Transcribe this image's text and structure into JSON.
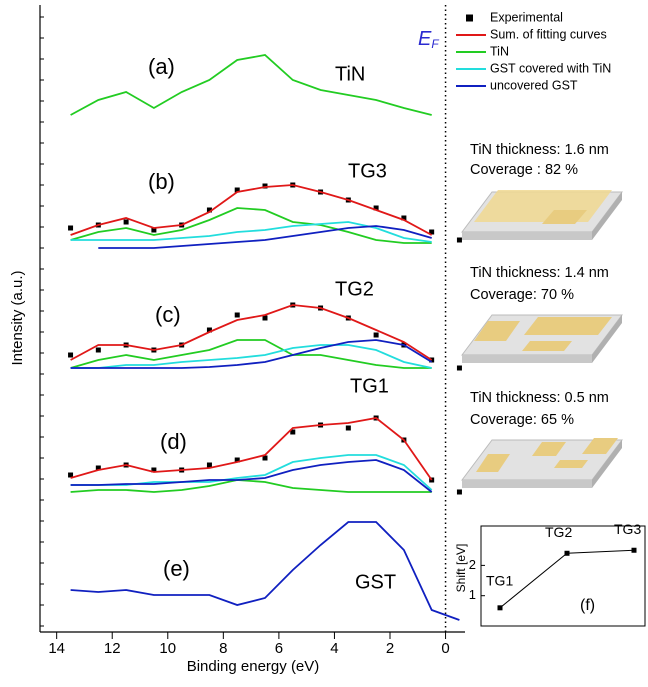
{
  "chart_data": [
    {
      "type": "line",
      "x_label": "Binding energy (eV)",
      "y_label": "Intensity (a.u.)",
      "fermi_label": {
        "text": "E",
        "sub": "F"
      },
      "fermi_level": 0,
      "xlim": [
        14.6,
        -0.7
      ],
      "xticks": [
        14,
        12,
        10,
        8,
        6,
        4,
        2,
        0
      ],
      "ylim": [
        0,
        627
      ],
      "x": [
        13.5,
        12.5,
        11.5,
        10.5,
        9.5,
        8.5,
        7.5,
        6.5,
        5.5,
        4.5,
        3.5,
        2.5,
        1.5,
        0.5,
        -0.5
      ],
      "series": [
        {
          "name": "Experimental",
          "color": "#000000",
          "marker": "square",
          "values": [
            404,
            407,
            410,
            402,
            407,
            422,
            442,
            446,
            447,
            440,
            432,
            424,
            414,
            400,
            392
          ]
        },
        {
          "name": "Sum. of fitting curves",
          "color": "#e01818",
          "values": [
            397,
            407,
            414,
            404,
            407,
            420,
            440,
            445,
            447,
            440,
            432,
            422,
            412,
            397,
            null
          ]
        },
        {
          "name": "TiN",
          "color": "#22cc22",
          "values": [
            392,
            400,
            404,
            397,
            402,
            412,
            424,
            422,
            410,
            407,
            400,
            392,
            389,
            389,
            null
          ]
        },
        {
          "name": "GST covered with TiN",
          "color": "#22dddd",
          "values": [
            392,
            392,
            392,
            392,
            394,
            396,
            400,
            402,
            406,
            408,
            410,
            404,
            394,
            390,
            null
          ]
        },
        {
          "name": "uncovered GST",
          "color": "#1020c0",
          "values": [
            null,
            384,
            384,
            384,
            386,
            388,
            390,
            392,
            396,
            400,
            404,
            406,
            402,
            394,
            null
          ]
        },
        {
          "name": "Experimental",
          "color": "#000000",
          "marker": "square",
          "values": [
            277,
            282,
            287,
            282,
            287,
            302,
            317,
            314,
            327,
            324,
            314,
            297,
            287,
            272,
            264
          ]
        },
        {
          "name": "Sum. of fitting curves",
          "color": "#e01818",
          "values": [
            272,
            287,
            287,
            282,
            287,
            300,
            312,
            317,
            327,
            324,
            314,
            302,
            290,
            272,
            null
          ]
        },
        {
          "name": "TiN",
          "color": "#22cc22",
          "values": [
            264,
            272,
            277,
            272,
            277,
            282,
            292,
            292,
            277,
            277,
            272,
            267,
            264,
            264,
            null
          ]
        },
        {
          "name": "GST covered with TiN",
          "color": "#22dddd",
          "values": [
            264,
            264,
            267,
            267,
            270,
            272,
            274,
            277,
            284,
            287,
            287,
            282,
            270,
            264,
            null
          ]
        },
        {
          "name": "uncovered GST",
          "color": "#1020c0",
          "values": [
            264,
            264,
            264,
            264,
            264,
            265,
            267,
            270,
            277,
            284,
            290,
            292,
            287,
            270,
            null
          ]
        },
        {
          "name": "Experimental",
          "color": "#000000",
          "marker": "square",
          "values": [
            157,
            164,
            167,
            162,
            162,
            167,
            172,
            174,
            200,
            207,
            204,
            214,
            192,
            152,
            140
          ]
        },
        {
          "name": "Sum. of fitting curves",
          "color": "#e01818",
          "values": [
            154,
            162,
            167,
            160,
            162,
            164,
            170,
            177,
            204,
            207,
            209,
            214,
            192,
            152,
            null
          ]
        },
        {
          "name": "TiN",
          "color": "#22cc22",
          "values": [
            140,
            142,
            142,
            140,
            142,
            146,
            152,
            150,
            144,
            142,
            140,
            140,
            140,
            140,
            null
          ]
        },
        {
          "name": "GST covered with TiN",
          "color": "#22dddd",
          "values": [
            147,
            147,
            147,
            150,
            150,
            150,
            154,
            157,
            170,
            174,
            177,
            177,
            167,
            142,
            null
          ]
        },
        {
          "name": "uncovered GST",
          "color": "#1020c0",
          "values": [
            147,
            147,
            148,
            148,
            150,
            152,
            152,
            154,
            162,
            167,
            170,
            172,
            162,
            140,
            null
          ]
        },
        {
          "name": "TiN",
          "color": "#22cc22",
          "values": [
            517,
            532,
            540,
            524,
            540,
            552,
            572,
            577,
            552,
            542,
            537,
            532,
            524,
            517,
            null
          ]
        },
        {
          "name": "uncovered GST",
          "color": "#1020c0",
          "values": [
            42,
            40,
            42,
            37,
            37,
            37,
            27,
            34,
            62,
            87,
            110,
            110,
            82,
            22,
            12
          ]
        }
      ],
      "annotations": [
        "(a)",
        "TiN",
        "(b)",
        "TG3",
        "(c)",
        "TG2",
        "TG1",
        "(d)",
        "(e)",
        "GST",
        "TiN thickness: 1.6 nm",
        "Coverage : 82 %",
        "TiN thickness: 1.4 nm",
        "Coverage: 70 %",
        "TiN thickness: 0.5 nm",
        "Coverage: 65 %"
      ]
    },
    {
      "type": "line",
      "y_label": "Shift [eV]",
      "label": "(f)",
      "categories": [
        "TG1",
        "TG2",
        "TG3"
      ],
      "values": [
        0.6,
        2.4,
        2.5
      ],
      "color": "#000000",
      "ylim": [
        0,
        3.3
      ],
      "yticks": [
        1,
        2
      ]
    }
  ]
}
